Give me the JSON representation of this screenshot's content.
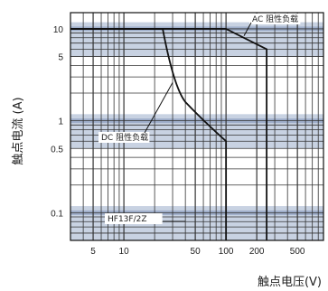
{
  "chart_data": {
    "type": "line",
    "xlabel": "触点电压(V)",
    "ylabel": "触点电流 (A)",
    "x_scale": "log",
    "y_scale": "log",
    "xlim": [
      3,
      900
    ],
    "ylim": [
      0.05,
      15
    ],
    "x_ticks": [
      {
        "value": 5,
        "label": "5"
      },
      {
        "value": 10,
        "label": "10"
      },
      {
        "value": 50,
        "label": "50"
      },
      {
        "value": 100,
        "label": "100"
      },
      {
        "value": 200,
        "label": "200"
      },
      {
        "value": 500,
        "label": "500"
      }
    ],
    "y_ticks": [
      {
        "value": 0.1,
        "label": "0.1"
      },
      {
        "value": 0.5,
        "label": "0.5"
      },
      {
        "value": 1,
        "label": "1"
      },
      {
        "value": 5,
        "label": "5"
      },
      {
        "value": 10,
        "label": "10"
      }
    ],
    "grid": true,
    "series": [
      {
        "name": "AC 阻性负载",
        "x": [
          3,
          100,
          250,
          250
        ],
        "y": [
          10,
          10,
          6,
          0.05
        ]
      },
      {
        "name": "DC 阻性负载",
        "x": [
          3,
          24,
          30,
          40,
          60,
          100,
          100
        ],
        "y": [
          10,
          10,
          3,
          1.6,
          1,
          0.6,
          0.05
        ]
      }
    ],
    "annotations": [
      {
        "text": "AC 阻性负载",
        "points_to_series": 0
      },
      {
        "text": "DC 阻性负载",
        "points_to_series": 1
      },
      {
        "text": "HF13F/2Z"
      }
    ],
    "colors": {
      "band": "#c8d2e2",
      "band_center": "#8ea0c0",
      "grid": "#333333",
      "curve": "#111111",
      "background": "#ffffff"
    }
  }
}
